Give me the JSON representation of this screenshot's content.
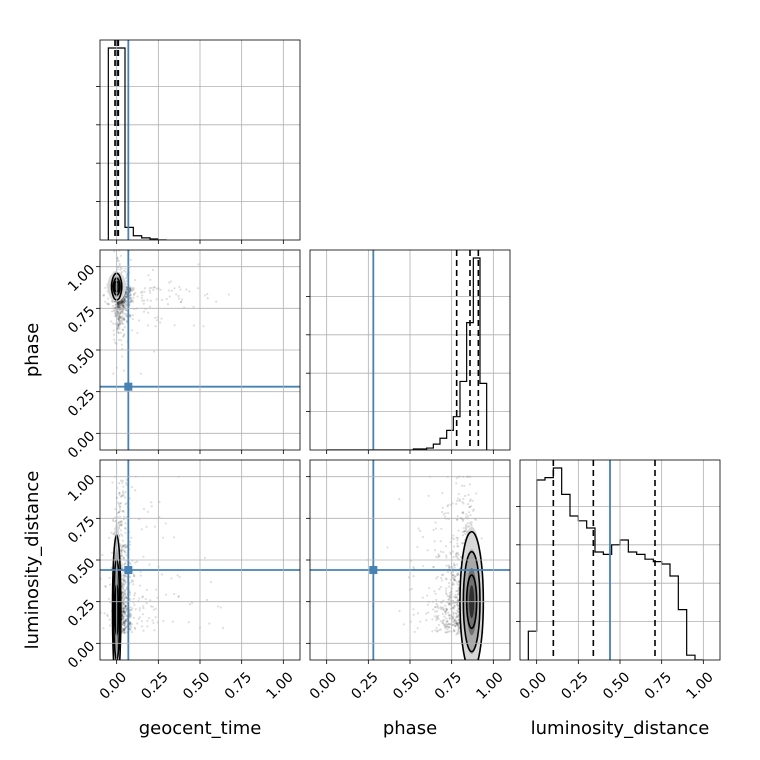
{
  "chart_data": {
    "type": "corner",
    "parameters": [
      "geocent_time",
      "phase",
      "luminosity_distance"
    ],
    "axis_range": [
      -0.1,
      1.1
    ],
    "tick_values": [
      0.0,
      0.25,
      0.5,
      0.75,
      1.0
    ],
    "tick_labels": [
      "0.00",
      "0.25",
      "0.50",
      "0.75",
      "1.00"
    ],
    "truths": {
      "geocent_time": 0.07,
      "phase": 0.28,
      "luminosity_distance": 0.44
    },
    "truth_color": "#4682b4",
    "grid": true,
    "histograms": {
      "geocent_time": {
        "bins": [
          -0.05,
          0.0,
          0.05,
          0.1,
          0.15,
          0.2,
          0.25,
          0.3
        ],
        "values": [
          0.91,
          0.91,
          0.06,
          0.02,
          0.01,
          0.005,
          0.0
        ],
        "quantiles": [
          -0.01,
          0.0,
          0.01
        ]
      },
      "phase": {
        "bins": [
          0.0,
          0.04,
          0.08,
          0.12,
          0.16,
          0.2,
          0.24,
          0.28,
          0.32,
          0.36,
          0.4,
          0.44,
          0.48,
          0.52,
          0.56,
          0.6,
          0.64,
          0.68,
          0.72,
          0.76,
          0.8,
          0.84,
          0.88,
          0.92,
          0.96
        ],
        "values": [
          0,
          0,
          0,
          0,
          0,
          0,
          0,
          0,
          0,
          0,
          0,
          0,
          0,
          0.005,
          0.005,
          0.01,
          0.03,
          0.06,
          0.1,
          0.17,
          0.35,
          0.65,
          0.98,
          0.34
        ],
        "quantiles": [
          0.78,
          0.86,
          0.91
        ]
      },
      "luminosity_distance": {
        "bins": [
          -0.05,
          0.0,
          0.05,
          0.1,
          0.15,
          0.2,
          0.25,
          0.3,
          0.35,
          0.4,
          0.45,
          0.5,
          0.55,
          0.6,
          0.65,
          0.7,
          0.75,
          0.8,
          0.85,
          0.9,
          0.95,
          1.0
        ],
        "values": [
          0.12,
          0.75,
          0.76,
          0.8,
          0.69,
          0.6,
          0.58,
          0.55,
          0.45,
          0.44,
          0.48,
          0.5,
          0.45,
          0.44,
          0.42,
          0.41,
          0.4,
          0.35,
          0.21,
          0.02,
          0.0
        ],
        "quantiles": [
          0.1,
          0.34,
          0.71
        ]
      }
    },
    "pairs": [
      {
        "x": "geocent_time",
        "y": "phase",
        "density_center": [
          0.0,
          0.88
        ],
        "density_spread": [
          0.04,
          0.06
        ],
        "contour_levels": [
          [
            0.03,
            0.08
          ],
          [
            0.02,
            0.05
          ],
          [
            0.015,
            0.03
          ]
        ]
      },
      {
        "x": "geocent_time",
        "y": "luminosity_distance",
        "density_center": [
          0.0,
          0.2
        ],
        "density_spread": [
          0.02,
          0.35
        ],
        "contour_levels": [
          [
            0.025,
            0.45
          ],
          [
            0.018,
            0.3
          ],
          [
            0.01,
            0.15
          ]
        ]
      },
      {
        "x": "phase",
        "y": "luminosity_distance",
        "density_center": [
          0.87,
          0.25
        ],
        "density_spread": [
          0.05,
          0.3
        ],
        "contour_levels": [
          [
            0.07,
            0.42
          ],
          [
            0.05,
            0.3
          ],
          [
            0.03,
            0.16
          ]
        ]
      }
    ]
  }
}
